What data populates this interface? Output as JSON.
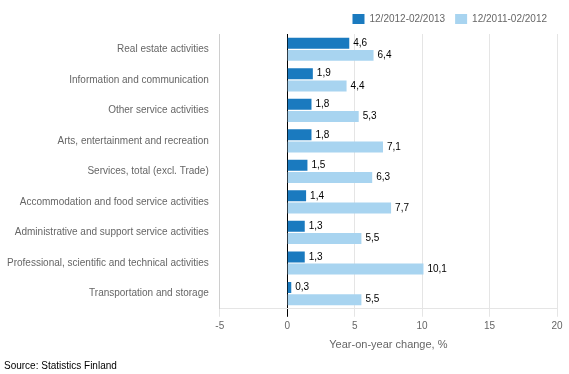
{
  "chart_data": {
    "type": "bar",
    "orientation": "horizontal",
    "categories": [
      "Transportation and storage",
      "Professional, scientific and technical activities",
      "Administrative and support service activities",
      "Accommodation and food service activities",
      "Services, total (excl. Trade)",
      "Arts, entertainment and recreation",
      "Other service activities",
      "Information and communication",
      "Real estate activities"
    ],
    "series": [
      {
        "name": "12/2012-02/2013",
        "color": "#1a7abf",
        "values": [
          0.3,
          1.3,
          1.3,
          1.4,
          1.5,
          1.8,
          1.8,
          1.9,
          4.6
        ],
        "value_labels": [
          "0,3",
          "1,3",
          "1,3",
          "1,4",
          "1,5",
          "1,8",
          "1,8",
          "1,9",
          "4,6"
        ]
      },
      {
        "name": "12/2011-02/2012",
        "color": "#a8d4f0",
        "values": [
          5.5,
          10.1,
          5.5,
          7.7,
          6.3,
          7.1,
          5.3,
          4.4,
          6.4
        ],
        "value_labels": [
          "5,5",
          "10,1",
          "5,5",
          "7,7",
          "6,3",
          "7,1",
          "5,3",
          "4,4",
          "6,4"
        ]
      }
    ],
    "xlabel": "Year-on-year change, %",
    "xlim": [
      -5,
      20
    ],
    "xticks": [
      -5,
      0,
      5,
      10,
      15,
      20
    ],
    "grid": "x",
    "legend": "upper right",
    "data_labels": true,
    "annotations": [
      "Source: Statistics Finland"
    ]
  }
}
